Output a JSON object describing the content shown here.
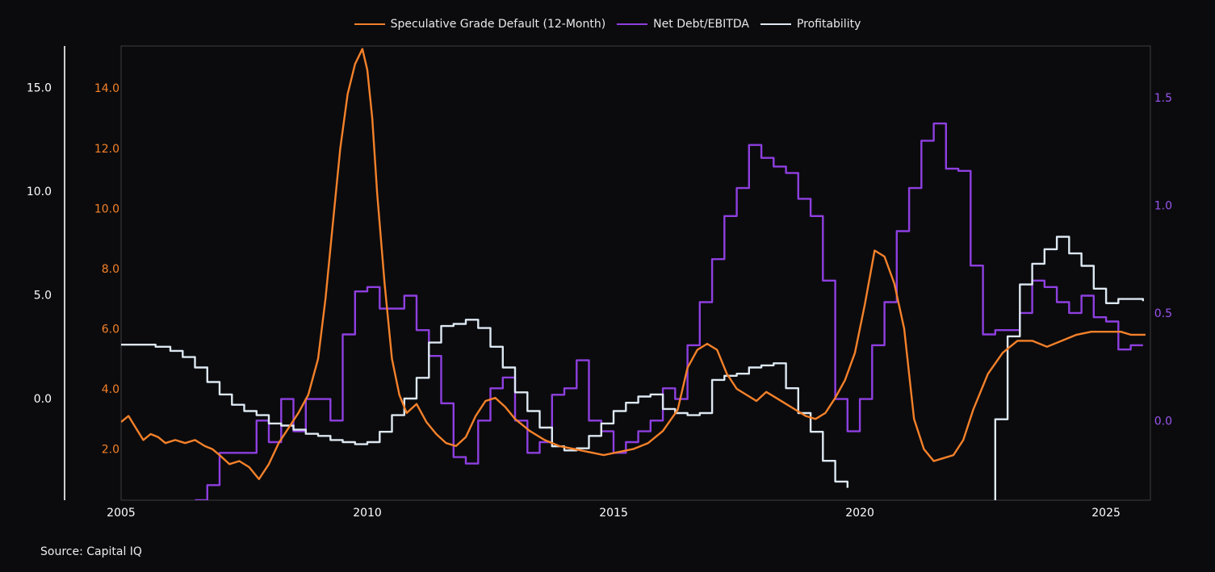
{
  "legend": {
    "items": [
      {
        "label": "Speculative Grade Default (12-Month)",
        "color": "#f5812a"
      },
      {
        "label": "Net Debt/EBITDA",
        "color": "#8e3fe0"
      },
      {
        "label": "Profitability",
        "color": "#dde8f2"
      }
    ]
  },
  "source": "Source: Capital IQ",
  "chart_data": {
    "type": "line",
    "title": "",
    "xlabel": "",
    "grid": false,
    "legend_position": "top-center",
    "x_ticks": [
      "2005",
      "2010",
      "2015",
      "2020",
      "2025"
    ],
    "axes": {
      "x": {
        "range": [
          2005.0,
          2025.9
        ]
      },
      "left_outer": {
        "ticks": [
          0.0,
          5.0,
          10.0,
          15.0
        ],
        "labels": [
          "0.0",
          "5.0",
          "10.0",
          "15.0"
        ],
        "color": "#ffffff",
        "range": [
          -4.9,
          17.0
        ]
      },
      "left_inner": {
        "ticks": [
          2.0,
          4.0,
          6.0,
          8.0,
          10.0,
          12.0,
          14.0
        ],
        "labels": [
          "2.0",
          "4.0",
          "6.0",
          "8.0",
          "10.0",
          "12.0",
          "14.0"
        ],
        "color": "#f5812a",
        "range": [
          0.3,
          15.4
        ]
      },
      "right": {
        "ticks": [
          0.0,
          0.5,
          1.0,
          1.5
        ],
        "labels": [
          "0.0",
          "0.5",
          "1.0",
          "1.5"
        ],
        "color": "#9a55ee",
        "range": [
          -0.37,
          1.74
        ]
      }
    },
    "series": [
      {
        "name": "Speculative Grade Default (12-Month)",
        "axis": "left_inner",
        "color": "#f5812a",
        "step": false,
        "x": [
          2005.0,
          2005.15,
          2005.3,
          2005.45,
          2005.6,
          2005.75,
          2005.9,
          2006.1,
          2006.3,
          2006.5,
          2006.7,
          2006.85,
          2007.0,
          2007.2,
          2007.4,
          2007.6,
          2007.8,
          2008.0,
          2008.2,
          2008.4,
          2008.6,
          2008.8,
          2009.0,
          2009.15,
          2009.3,
          2009.45,
          2009.6,
          2009.75,
          2009.9,
          2010.0,
          2010.1,
          2010.2,
          2010.35,
          2010.5,
          2010.65,
          2010.8,
          2011.0,
          2011.2,
          2011.4,
          2011.6,
          2011.8,
          2012.0,
          2012.2,
          2012.4,
          2012.6,
          2012.8,
          2013.0,
          2013.3,
          2013.6,
          2013.9,
          2014.2,
          2014.5,
          2014.8,
          2015.1,
          2015.4,
          2015.7,
          2016.0,
          2016.3,
          2016.5,
          2016.7,
          2016.9,
          2017.1,
          2017.3,
          2017.5,
          2017.7,
          2017.9,
          2018.1,
          2018.3,
          2018.5,
          2018.7,
          2018.9,
          2019.1,
          2019.3,
          2019.5,
          2019.7,
          2019.9,
          2020.1,
          2020.3,
          2020.5,
          2020.7,
          2020.9,
          2021.1,
          2021.3,
          2021.5,
          2021.7,
          2021.9,
          2022.1,
          2022.3,
          2022.6,
          2022.9,
          2023.2,
          2023.5,
          2023.8,
          2024.1,
          2024.4,
          2024.7,
          2025.0,
          2025.3,
          2025.5,
          2025.8
        ],
        "y": [
          2.9,
          3.1,
          2.7,
          2.3,
          2.5,
          2.4,
          2.2,
          2.3,
          2.2,
          2.3,
          2.1,
          2.0,
          1.8,
          1.5,
          1.6,
          1.4,
          1.0,
          1.5,
          2.2,
          2.7,
          3.2,
          3.8,
          5.0,
          7.0,
          9.5,
          12.0,
          13.8,
          14.8,
          15.3,
          14.6,
          13.0,
          10.5,
          7.5,
          5.0,
          3.8,
          3.2,
          3.5,
          2.9,
          2.5,
          2.2,
          2.1,
          2.4,
          3.1,
          3.6,
          3.7,
          3.4,
          3.0,
          2.6,
          2.3,
          2.1,
          2.0,
          1.9,
          1.8,
          1.9,
          2.0,
          2.2,
          2.6,
          3.3,
          4.7,
          5.3,
          5.5,
          5.3,
          4.5,
          4.0,
          3.8,
          3.6,
          3.9,
          3.7,
          3.5,
          3.3,
          3.1,
          3.0,
          3.2,
          3.7,
          4.3,
          5.2,
          6.8,
          8.6,
          8.4,
          7.5,
          6.0,
          3.0,
          2.0,
          1.6,
          1.7,
          1.8,
          2.3,
          3.3,
          4.5,
          5.2,
          5.6,
          5.6,
          5.4,
          5.6,
          5.8,
          5.9,
          5.9,
          5.9,
          5.8,
          5.8
        ],
        "y_override_note": ""
      },
      {
        "name": "Net Debt/EBITDA",
        "axis": "right",
        "color": "#8e3fe0",
        "step": true,
        "x": [
          2006.5,
          2006.75,
          2007.0,
          2007.25,
          2007.5,
          2007.75,
          2008.0,
          2008.25,
          2008.5,
          2008.75,
          2009.0,
          2009.25,
          2009.5,
          2009.75,
          2010.0,
          2010.25,
          2010.5,
          2010.75,
          2011.0,
          2011.25,
          2011.5,
          2011.75,
          2012.0,
          2012.25,
          2012.5,
          2012.75,
          2013.0,
          2013.25,
          2013.5,
          2013.75,
          2014.0,
          2014.25,
          2014.5,
          2014.75,
          2015.0,
          2015.25,
          2015.5,
          2015.75,
          2016.0,
          2016.25,
          2016.5,
          2016.75,
          2017.0,
          2017.25,
          2017.5,
          2017.75,
          2018.0,
          2018.25,
          2018.5,
          2018.75,
          2019.0,
          2019.25,
          2019.5,
          2019.75,
          2020.0,
          2020.25,
          2020.5,
          2020.75,
          2021.0,
          2021.25,
          2021.5,
          2021.75,
          2022.0,
          2022.25,
          2022.5,
          2022.75,
          2023.0,
          2023.25,
          2023.5,
          2023.75,
          2024.0,
          2024.25,
          2024.5,
          2024.75,
          2025.0,
          2025.25,
          2025.5,
          2025.75
        ],
        "y": [
          -0.37,
          -0.3,
          -0.15,
          -0.15,
          -0.15,
          0.0,
          -0.1,
          0.1,
          -0.05,
          0.1,
          0.1,
          0.0,
          0.4,
          0.6,
          0.62,
          0.52,
          0.52,
          0.58,
          0.42,
          0.3,
          0.08,
          -0.17,
          -0.2,
          0.0,
          0.15,
          0.2,
          0.0,
          -0.15,
          -0.1,
          0.12,
          0.15,
          0.28,
          0.0,
          -0.05,
          -0.15,
          -0.1,
          -0.05,
          0.0,
          0.15,
          0.1,
          0.35,
          0.55,
          0.75,
          0.95,
          1.08,
          1.28,
          1.22,
          1.18,
          1.15,
          1.03,
          0.95,
          0.65,
          0.1,
          -0.05,
          0.1,
          0.35,
          0.55,
          0.88,
          1.08,
          1.3,
          1.38,
          1.17,
          1.16,
          0.72,
          0.4,
          0.42,
          0.42,
          0.5,
          0.65,
          0.62,
          0.55,
          0.5,
          0.58,
          0.48,
          0.46,
          0.33,
          0.35,
          0.35
        ]
      },
      {
        "name": "Profitability",
        "axis": "left_outer",
        "color": "#dde8f2",
        "step": true,
        "x": [
          2005.0,
          2005.7,
          2006.0,
          2006.25,
          2006.5,
          2006.75,
          2007.0,
          2007.25,
          2007.5,
          2007.75,
          2008.0,
          2008.25,
          2008.5,
          2008.75,
          2009.0,
          2009.25,
          2009.5,
          2009.75,
          2010.0,
          2010.25,
          2010.5,
          2010.75,
          2011.0,
          2011.25,
          2011.5,
          2011.75,
          2012.0,
          2012.25,
          2012.5,
          2012.75,
          2013.0,
          2013.25,
          2013.5,
          2013.75,
          2014.0,
          2014.25,
          2014.5,
          2014.75,
          2015.0,
          2015.25,
          2015.5,
          2015.75,
          2016.0,
          2016.25,
          2016.5,
          2016.75,
          2017.0,
          2017.25,
          2017.5,
          2017.75,
          2018.0,
          2018.25,
          2018.5,
          2018.75,
          2019.0,
          2019.25,
          2019.5,
          2019.75,
          2020.0,
          2020.25,
          2020.5,
          2020.75,
          2021.0,
          2021.25,
          2021.5,
          2021.75,
          2022.0,
          2022.25,
          2022.5,
          2022.75,
          2023.0,
          2023.25,
          2023.5,
          2023.75,
          2024.0,
          2024.25,
          2024.5,
          2024.75,
          2025.0,
          2025.25,
          2025.5,
          2025.75
        ],
        "y": [
          2.6,
          2.5,
          2.3,
          2.0,
          1.5,
          0.8,
          0.2,
          -0.3,
          -0.6,
          -0.8,
          -1.2,
          -1.3,
          -1.5,
          -1.7,
          -1.8,
          -2.0,
          -2.1,
          -2.2,
          -2.1,
          -1.6,
          -0.8,
          0.0,
          1.0,
          2.7,
          3.5,
          3.6,
          3.8,
          3.4,
          2.5,
          1.5,
          0.3,
          -0.6,
          -1.4,
          -2.3,
          -2.5,
          -2.4,
          -1.8,
          -1.2,
          -0.6,
          -0.2,
          0.1,
          0.2,
          -0.5,
          -0.7,
          -0.8,
          -0.7,
          0.9,
          1.1,
          1.2,
          1.5,
          1.6,
          1.7,
          0.5,
          -0.7,
          -1.6,
          -3.0,
          -4.0,
          -4.3,
          -4.9,
          -4.9,
          -4.9,
          -4.9,
          -4.9,
          -4.9,
          -4.9,
          -4.9,
          -4.9,
          -4.9,
          -5.5,
          -1.0,
          3.0,
          5.5,
          6.5,
          7.2,
          7.8,
          7.0,
          6.4,
          5.3,
          4.6,
          4.8,
          4.8,
          4.7
        ],
        "gaps": [
          [
            2019.9,
            2022.5
          ]
        ]
      }
    ]
  }
}
